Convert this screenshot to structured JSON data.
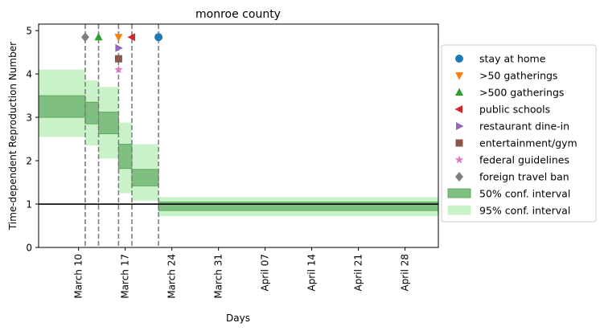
{
  "chart_data": {
    "type": "step-area",
    "title": "monroe county",
    "xlabel": "Days",
    "ylabel": "Time-dependent Reproduction Number",
    "ylim": [
      0,
      5.15
    ],
    "yticks": [
      0,
      1,
      2,
      3,
      4,
      5
    ],
    "xrange": [
      "2020-03-04",
      "2020-05-03"
    ],
    "xticks": [
      {
        "date": "2020-03-10",
        "label": "March 10"
      },
      {
        "date": "2020-03-17",
        "label": "March 17"
      },
      {
        "date": "2020-03-24",
        "label": "March 24"
      },
      {
        "date": "2020-03-31",
        "label": "March 31"
      },
      {
        "date": "2020-04-07",
        "label": "April 07"
      },
      {
        "date": "2020-04-14",
        "label": "April 14"
      },
      {
        "date": "2020-04-21",
        "label": "April 21"
      },
      {
        "date": "2020-04-28",
        "label": "April 28"
      }
    ],
    "reference_line": 1.0,
    "intervals": [
      {
        "start": "2020-03-04",
        "end": "2020-03-11",
        "ci50": [
          3.0,
          3.5
        ],
        "ci95": [
          2.55,
          4.1
        ]
      },
      {
        "start": "2020-03-11",
        "end": "2020-03-13",
        "ci50": [
          2.85,
          3.35
        ],
        "ci95": [
          2.35,
          3.85
        ]
      },
      {
        "start": "2020-03-13",
        "end": "2020-03-16",
        "ci50": [
          2.62,
          3.12
        ],
        "ci95": [
          2.05,
          3.7
        ]
      },
      {
        "start": "2020-03-16",
        "end": "2020-03-18",
        "ci50": [
          1.82,
          2.38
        ],
        "ci95": [
          1.25,
          2.88
        ]
      },
      {
        "start": "2020-03-18",
        "end": "2020-03-22",
        "ci50": [
          1.42,
          1.8
        ],
        "ci95": [
          1.08,
          2.38
        ]
      },
      {
        "start": "2020-03-22",
        "end": "2020-05-03",
        "ci50": [
          0.85,
          1.05
        ],
        "ci95": [
          0.72,
          1.16
        ]
      }
    ],
    "interventions": [
      {
        "name": "stay at home",
        "date": "2020-03-22",
        "y": 4.85,
        "marker": "circle",
        "color": "#1f77b4"
      },
      {
        "name": ">50 gatherings",
        "date": "2020-03-16",
        "y": 4.85,
        "marker": "triangle-down",
        "color": "#ff7f0e"
      },
      {
        "name": ">500 gatherings",
        "date": "2020-03-13",
        "y": 4.85,
        "marker": "triangle-up",
        "color": "#2ca02c"
      },
      {
        "name": "public schools",
        "date": "2020-03-18",
        "y": 4.85,
        "marker": "triangle-left",
        "color": "#d62728"
      },
      {
        "name": "restaurant dine-in",
        "date": "2020-03-16",
        "y": 4.6,
        "marker": "triangle-right",
        "color": "#9467bd"
      },
      {
        "name": "entertainment/gym",
        "date": "2020-03-16",
        "y": 4.35,
        "marker": "square",
        "color": "#8c564b"
      },
      {
        "name": "federal guidelines",
        "date": "2020-03-16",
        "y": 4.1,
        "marker": "star",
        "color": "#e377c2"
      },
      {
        "name": "foreign travel ban",
        "date": "2020-03-11",
        "y": 4.85,
        "marker": "diamond",
        "color": "#7f7f7f"
      }
    ],
    "intervention_lines": [
      "2020-03-11",
      "2020-03-13",
      "2020-03-16",
      "2020-03-18",
      "2020-03-22"
    ],
    "legend": {
      "placement": "right",
      "entries": [
        {
          "label": "stay at home",
          "kind": "marker",
          "ref": 0
        },
        {
          "label": ">50 gatherings",
          "kind": "marker",
          "ref": 1
        },
        {
          "label": ">500 gatherings",
          "kind": "marker",
          "ref": 2
        },
        {
          "label": "public schools",
          "kind": "marker",
          "ref": 3
        },
        {
          "label": "restaurant dine-in",
          "kind": "marker",
          "ref": 4
        },
        {
          "label": "entertainment/gym",
          "kind": "marker",
          "ref": 5
        },
        {
          "label": "federal guidelines",
          "kind": "marker",
          "ref": 6
        },
        {
          "label": "foreign travel ban",
          "kind": "marker",
          "ref": 7
        },
        {
          "label": "50% conf. interval",
          "kind": "patch",
          "ref": "ci50"
        },
        {
          "label": "95% conf. interval",
          "kind": "patch",
          "ref": "ci95"
        }
      ]
    },
    "colors": {
      "ci50_fill": "#7fbf7f",
      "ci50_edge": "#4f9f4f",
      "ci95_fill": "#c9f2c9",
      "vline": "#7f7f7f",
      "refline": "#000000"
    }
  }
}
